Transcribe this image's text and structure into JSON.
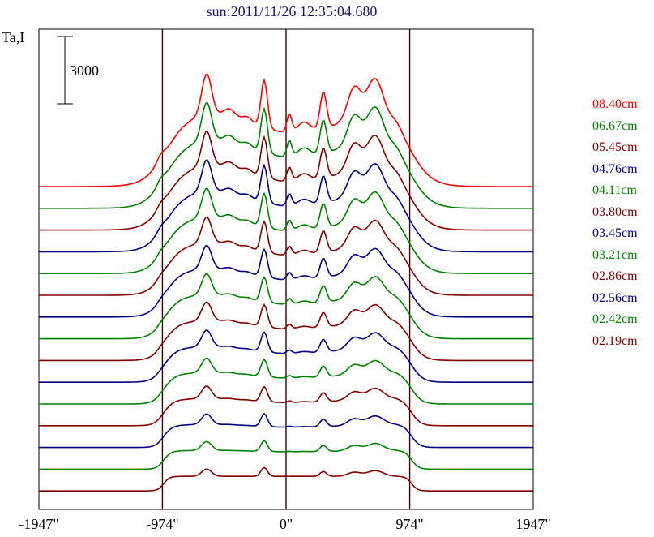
{
  "chart_data": {
    "type": "line",
    "title": "sun:2011/11/26 12:35:04.680",
    "ylabel": "Ta,I",
    "scale_bar_label": "3000",
    "x_tick_labels": [
      "-1947\"",
      "-974\"",
      "0\"",
      "974\"",
      "1947\""
    ],
    "x_ticks": [
      -1947,
      -974,
      0,
      974,
      1947
    ],
    "xlim": [
      -1947,
      1947
    ],
    "vertical_lines": [
      -974,
      0,
      974
    ],
    "series": [
      {
        "name": "08.40cm",
        "color": "#ff0000"
      },
      {
        "name": "06.67cm",
        "color": "#008000"
      },
      {
        "name": "05.45cm",
        "color": "#800000"
      },
      {
        "name": "04.76cm",
        "color": "#000080"
      },
      {
        "name": "04.11cm",
        "color": "#008000"
      },
      {
        "name": "03.80cm",
        "color": "#800000"
      },
      {
        "name": "03.45cm",
        "color": "#000080"
      },
      {
        "name": "03.21cm",
        "color": "#008000"
      },
      {
        "name": "02.86cm",
        "color": "#800000"
      },
      {
        "name": "02.56cm",
        "color": "#000080"
      },
      {
        "name": "02.42cm",
        "color": "#008000"
      },
      {
        "name": "02.19cm",
        "color": "#800000"
      },
      {
        "name": "",
        "color": "#000080"
      },
      {
        "name": "",
        "color": "#008000"
      },
      {
        "name": "",
        "color": "#800000"
      }
    ]
  }
}
